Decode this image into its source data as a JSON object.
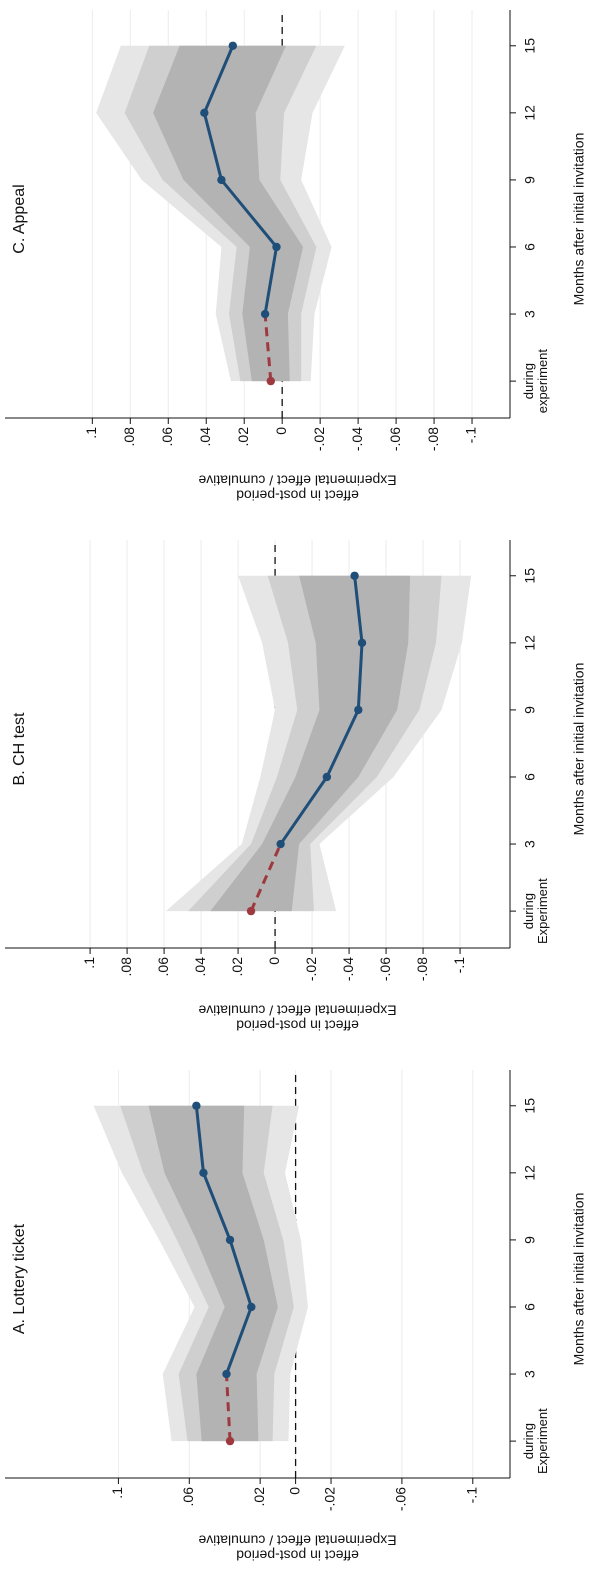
{
  "chart_data": [
    {
      "type": "line",
      "title": "A. Lottery ticket",
      "xlabel": "Months after initial invitation",
      "ylabel": [
        "Experimental effect / cumulative",
        "effect in post-period"
      ],
      "x": [
        0,
        3,
        6,
        9,
        12,
        15
      ],
      "xticks": [
        {
          "value": 0,
          "label": "during Experiment"
        },
        3,
        6,
        9,
        12,
        15
      ],
      "xlim": [
        -1.65,
        16.6
      ],
      "ylim": [
        -0.121,
        0.164
      ],
      "yticks": [
        {
          "value": -0.1,
          "label": "-.1"
        },
        {
          "value": -0.06,
          "label": "-.06"
        },
        {
          "value": -0.02,
          "label": "-.02"
        },
        0,
        {
          "value": 0.02,
          "label": ".02"
        },
        {
          "value": 0.06,
          "label": ".06"
        },
        {
          "value": 0.1,
          "label": ".1"
        }
      ],
      "grid": true,
      "reference_line": 0,
      "series": [
        {
          "color": "#1f4e79",
          "first_segment_color": "#9e3a3f",
          "first_segment_dashed": true,
          "values": [
            0.037,
            0.039,
            0.025,
            0.037,
            0.052,
            0.056
          ]
        }
      ],
      "ci_bands": [
        {
          "color": "#e6e6e6",
          "lower": [
            0.004,
            0.003,
            -0.007,
            -0.003,
            0.006,
            -0.002
          ],
          "upper": [
            0.07,
            0.075,
            0.057,
            0.077,
            0.098,
            0.114
          ]
        },
        {
          "color": "#cfcfcf",
          "lower": [
            0.013,
            0.012,
            0.001,
            0.007,
            0.018,
            0.013
          ],
          "upper": [
            0.061,
            0.066,
            0.049,
            0.067,
            0.086,
            0.099
          ]
        },
        {
          "color": "#b3b3b3",
          "lower": [
            0.021,
            0.022,
            0.01,
            0.018,
            0.03,
            0.029
          ],
          "upper": [
            0.053,
            0.056,
            0.04,
            0.056,
            0.074,
            0.083
          ]
        }
      ]
    },
    {
      "type": "line",
      "title": "B. CH test",
      "xlabel": "Months after initial invitation",
      "ylabel": [
        "Experimental effect / cumulative",
        "effect in post-period"
      ],
      "x": [
        0,
        3,
        6,
        9,
        12,
        15
      ],
      "xticks": [
        {
          "value": 0,
          "label": "during Experiment"
        },
        3,
        6,
        9,
        12,
        15
      ],
      "xlim": [
        -1.65,
        16.6
      ],
      "ylim": [
        -0.127,
        0.146
      ],
      "yticks": [
        {
          "value": -0.1,
          "label": "-.1"
        },
        {
          "value": -0.08,
          "label": "-.08"
        },
        {
          "value": -0.06,
          "label": "-.06"
        },
        {
          "value": -0.04,
          "label": "-.04"
        },
        {
          "value": -0.02,
          "label": "-.02"
        },
        0,
        {
          "value": 0.02,
          "label": ".02"
        },
        {
          "value": 0.04,
          "label": ".04"
        },
        {
          "value": 0.06,
          "label": ".06"
        },
        {
          "value": 0.08,
          "label": ".08"
        },
        {
          "value": 0.1,
          "label": ".1"
        }
      ],
      "grid": true,
      "reference_line": 0,
      "series": [
        {
          "color": "#1f4e79",
          "first_segment_color": "#9e3a3f",
          "first_segment_dashed": true,
          "values": [
            0.013,
            -0.003,
            -0.028,
            -0.045,
            -0.047,
            -0.043
          ]
        }
      ],
      "ci_bands": [
        {
          "color": "#e6e6e6",
          "lower": [
            -0.033,
            -0.024,
            -0.064,
            -0.09,
            -0.101,
            -0.106
          ],
          "upper": [
            0.059,
            0.018,
            0.008,
            0.0,
            0.007,
            0.02
          ]
        },
        {
          "color": "#cfcfcf",
          "lower": [
            -0.021,
            -0.019,
            -0.055,
            -0.078,
            -0.087,
            -0.09
          ],
          "upper": [
            0.047,
            0.013,
            -0.001,
            -0.012,
            -0.007,
            0.004
          ]
        },
        {
          "color": "#b3b3b3",
          "lower": [
            -0.009,
            -0.013,
            -0.045,
            -0.066,
            -0.072,
            -0.073
          ],
          "upper": [
            0.035,
            0.007,
            -0.011,
            -0.024,
            -0.022,
            -0.013
          ]
        }
      ]
    },
    {
      "type": "line",
      "title": "C. Appeal",
      "xlabel": "Months after initial invitation",
      "ylabel": [
        "Experimental effect / cumulative",
        "effect in post-period"
      ],
      "x": [
        0,
        3,
        6,
        9,
        12,
        15
      ],
      "xticks": [
        {
          "value": 0,
          "label": "during experiment"
        },
        3,
        6,
        9,
        12,
        15
      ],
      "xlim": [
        -1.65,
        16.6
      ],
      "ylim": [
        -0.12,
        0.146
      ],
      "yticks": [
        {
          "value": -0.1,
          "label": "-.1"
        },
        {
          "value": -0.08,
          "label": "-.08"
        },
        {
          "value": -0.06,
          "label": "-.06"
        },
        {
          "value": -0.04,
          "label": "-.04"
        },
        {
          "value": -0.02,
          "label": "-.02"
        },
        0,
        {
          "value": 0.02,
          "label": ".02"
        },
        {
          "value": 0.04,
          "label": ".04"
        },
        {
          "value": 0.06,
          "label": ".06"
        },
        {
          "value": 0.08,
          "label": ".08"
        },
        {
          "value": 0.1,
          "label": ".1"
        }
      ],
      "grid": true,
      "reference_line": 0,
      "series": [
        {
          "color": "#1f4e79",
          "first_segment_color": "#9e3a3f",
          "first_segment_dashed": true,
          "values": [
            0.006,
            0.009,
            0.003,
            0.032,
            0.041,
            0.026
          ]
        }
      ],
      "ci_bands": [
        {
          "color": "#e6e6e6",
          "lower": [
            -0.015,
            -0.017,
            -0.026,
            -0.01,
            -0.016,
            -0.033
          ],
          "upper": [
            0.027,
            0.035,
            0.032,
            0.074,
            0.098,
            0.085
          ]
        },
        {
          "color": "#cfcfcf",
          "lower": [
            -0.01,
            -0.01,
            -0.018,
            0.001,
            -0.001,
            -0.018
          ],
          "upper": [
            0.022,
            0.028,
            0.024,
            0.063,
            0.083,
            0.07
          ]
        },
        {
          "color": "#b3b3b3",
          "lower": [
            -0.004,
            -0.003,
            -0.011,
            0.012,
            0.014,
            -0.002
          ],
          "upper": [
            0.016,
            0.021,
            0.017,
            0.052,
            0.068,
            0.054
          ]
        }
      ]
    }
  ]
}
